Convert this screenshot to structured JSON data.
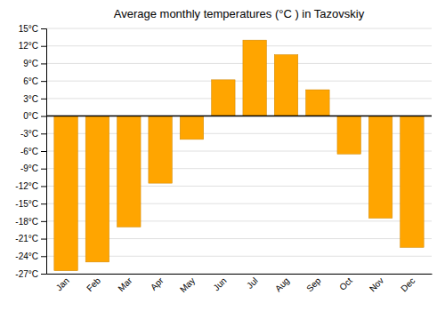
{
  "chart_data": {
    "type": "bar",
    "title": "Average monthly temperatures (°C ) in Tazovskiy",
    "categories": [
      "Jan",
      "Feb",
      "Mar",
      "Apr",
      "May",
      "Jun",
      "Jul",
      "Aug",
      "Sep",
      "Oct",
      "Nov",
      "Dec"
    ],
    "values": [
      -26.5,
      -25.0,
      -19.0,
      -11.5,
      -4.0,
      6.2,
      13.0,
      10.5,
      4.5,
      -6.5,
      -17.5,
      -22.5
    ],
    "color": "#FFA500",
    "ylim": [
      -27,
      15
    ],
    "yticks": [
      {
        "value": -27,
        "label": "-27°C"
      },
      {
        "value": -24,
        "label": "-24°C"
      },
      {
        "value": -21,
        "label": "-21°C"
      },
      {
        "value": -18,
        "label": "-18°C"
      },
      {
        "value": -15,
        "label": "-15°C"
      },
      {
        "value": -12,
        "label": "-12°C"
      },
      {
        "value": -9,
        "label": "-9°C"
      },
      {
        "value": -6,
        "label": "-6°C"
      },
      {
        "value": -3,
        "label": "-3°C"
      },
      {
        "value": 0,
        "label": "0°C"
      },
      {
        "value": 3,
        "label": "3°C"
      },
      {
        "value": 6,
        "label": "6°C"
      },
      {
        "value": 9,
        "label": "9°C"
      },
      {
        "value": 12,
        "label": "12°C"
      },
      {
        "value": 15,
        "label": "15°C"
      }
    ],
    "grid": true
  }
}
